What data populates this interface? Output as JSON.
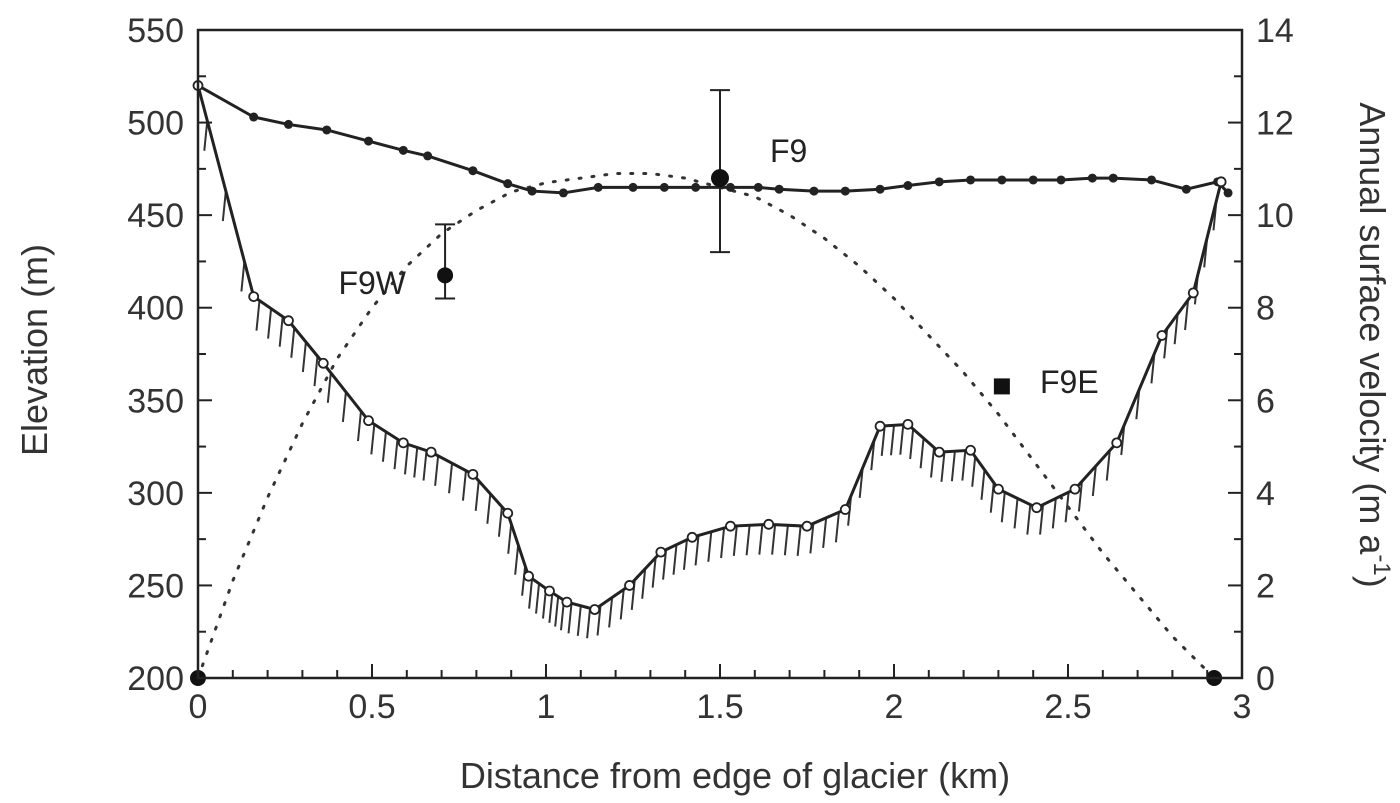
{
  "chart_data": {
    "type": "line",
    "xlabel": "Distance from edge of glacier (km)",
    "ylabel": "Elevation  (m)",
    "y2label": "Annual surface velocity (m a",
    "y2label_sup": "-1",
    "y2label_end": ")",
    "xlim": [
      0,
      3
    ],
    "ylim": [
      200,
      550
    ],
    "y2lim": [
      0,
      14
    ],
    "x_ticks": [
      "0",
      "0.5",
      "1",
      "1.5",
      "2",
      "2.5",
      "3"
    ],
    "y_ticks": [
      "200",
      "250",
      "300",
      "350",
      "400",
      "450",
      "500",
      "550"
    ],
    "y2_ticks": [
      "0",
      "2",
      "4",
      "6",
      "8",
      "10",
      "12",
      "14"
    ],
    "grid": false,
    "series": [
      {
        "role": "surface elevation",
        "axis": "left",
        "x": [
          0,
          0.16,
          0.26,
          0.37,
          0.49,
          0.59,
          0.66,
          0.79,
          0.89,
          0.96,
          1.05,
          1.15,
          1.25,
          1.34,
          1.43,
          1.53,
          1.61,
          1.67,
          1.77,
          1.86,
          1.96,
          2.04,
          2.13,
          2.22,
          2.31,
          2.4,
          2.48,
          2.57,
          2.63,
          2.74,
          2.84,
          2.93,
          2.96
        ],
        "y": [
          520,
          503,
          499,
          496,
          490,
          485,
          482,
          474,
          467,
          463,
          462,
          465,
          465,
          465,
          465,
          465,
          465,
          464,
          463,
          463,
          464,
          466,
          468,
          469,
          469,
          469,
          469,
          470,
          470,
          469,
          464,
          468,
          462
        ]
      },
      {
        "role": "bed elevation",
        "axis": "left",
        "x": [
          0,
          0.16,
          0.26,
          0.36,
          0.49,
          0.59,
          0.67,
          0.79,
          0.89,
          0.95,
          1.01,
          1.06,
          1.14,
          1.24,
          1.33,
          1.42,
          1.53,
          1.64,
          1.75,
          1.86,
          1.96,
          2.04,
          2.13,
          2.22,
          2.3,
          2.41,
          2.52,
          2.64,
          2.77,
          2.86,
          2.94
        ],
        "y": [
          520,
          406,
          393,
          370,
          339,
          327,
          322,
          310,
          289,
          255,
          247,
          241,
          237,
          250,
          268,
          276,
          282,
          283,
          282,
          291,
          336,
          337,
          322,
          323,
          302,
          292,
          302,
          327,
          385,
          408,
          468
        ]
      },
      {
        "role": "velocity profile",
        "axis": "right",
        "style": "dotted",
        "x": [
          0,
          0.1,
          0.2,
          0.3,
          0.4,
          0.5,
          0.6,
          0.7,
          0.8,
          0.9,
          1.0,
          1.1,
          1.2,
          1.3,
          1.4,
          1.5,
          1.6,
          1.7,
          1.8,
          1.9,
          2.0,
          2.1,
          2.2,
          2.3,
          2.4,
          2.5,
          2.6,
          2.7,
          2.8,
          2.92
        ],
        "y": [
          0,
          2.1,
          3.9,
          5.5,
          6.9,
          8.0,
          8.9,
          9.6,
          10.1,
          10.5,
          10.7,
          10.8,
          10.9,
          10.9,
          10.8,
          10.6,
          10.4,
          10.0,
          9.5,
          8.9,
          8.2,
          7.4,
          6.6,
          5.7,
          4.7,
          3.7,
          2.7,
          1.8,
          0.9,
          0
        ]
      }
    ],
    "velocity_points": [
      {
        "label": "F9W",
        "x": 0.71,
        "y": 8.7,
        "marker": "circle",
        "error": [
          8.2,
          9.8
        ]
      },
      {
        "label": "F9",
        "x": 1.5,
        "y": 10.8,
        "marker": "circle",
        "error": [
          9.2,
          12.7
        ]
      },
      {
        "label": "F9E",
        "x": 2.31,
        "y": 6.3,
        "marker": "square"
      },
      {
        "label": "",
        "x": 0.0,
        "y": 0,
        "marker": "circle"
      },
      {
        "label": "",
        "x": 2.92,
        "y": 0,
        "marker": "circle"
      }
    ]
  }
}
